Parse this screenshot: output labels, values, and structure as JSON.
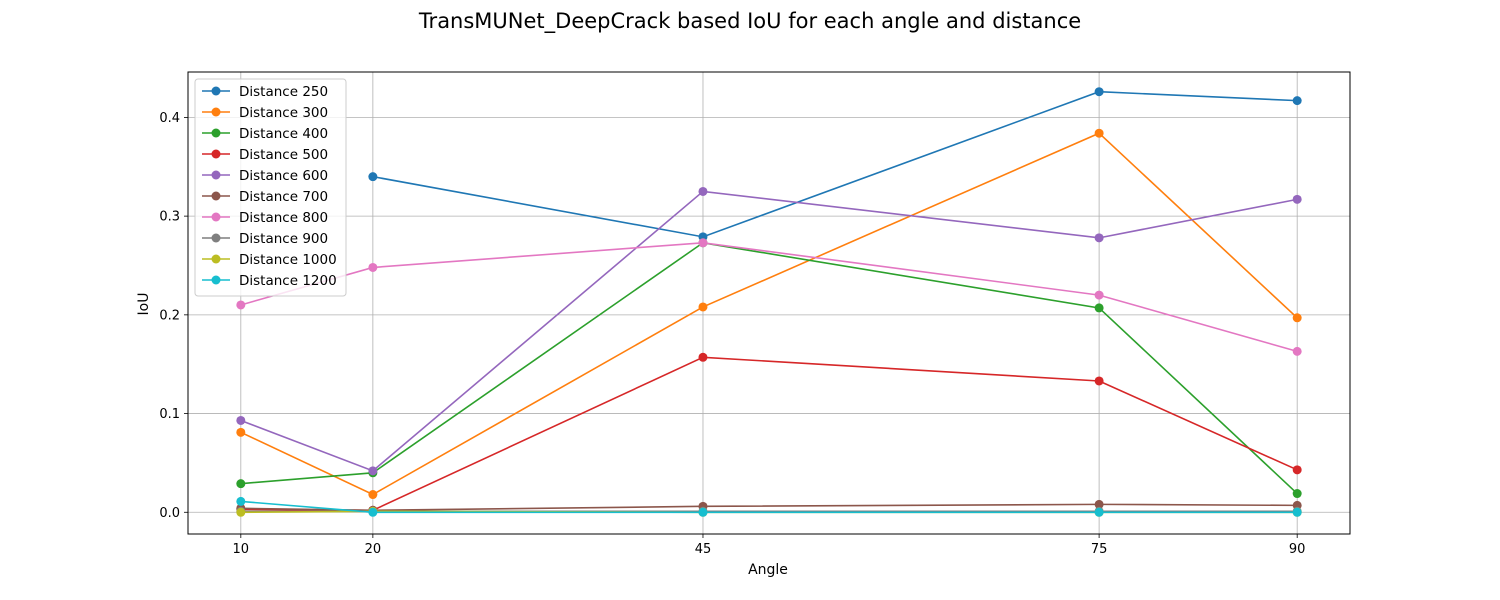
{
  "chart_data": {
    "type": "line",
    "title": "TransMUNet_DeepCrack based IoU for each angle and distance",
    "xlabel": "Angle",
    "ylabel": "IoU",
    "xlim": [
      6,
      94
    ],
    "ylim": [
      -0.022,
      0.446
    ],
    "xticks": [
      10,
      20,
      45,
      75,
      90
    ],
    "yticks": [
      0.0,
      0.1,
      0.2,
      0.3,
      0.4
    ],
    "ytick_labels": [
      "0.0",
      "0.1",
      "0.2",
      "0.3",
      "0.4"
    ],
    "grid": true,
    "legend_position": "upper-left",
    "x": [
      10,
      20,
      45,
      75,
      90
    ],
    "series": [
      {
        "name": "Distance 250",
        "color": "#1f77b4",
        "values": [
          null,
          0.34,
          0.279,
          0.426,
          0.417
        ]
      },
      {
        "name": "Distance 300",
        "color": "#ff7f0e",
        "values": [
          0.081,
          0.018,
          0.208,
          0.384,
          0.197
        ]
      },
      {
        "name": "Distance 400",
        "color": "#2ca02c",
        "values": [
          0.029,
          0.04,
          0.273,
          0.207,
          0.019
        ]
      },
      {
        "name": "Distance 500",
        "color": "#d62728",
        "values": [
          0.003,
          0.002,
          0.157,
          0.133,
          0.043
        ]
      },
      {
        "name": "Distance 600",
        "color": "#9467bd",
        "values": [
          0.093,
          0.042,
          0.325,
          0.278,
          0.317
        ]
      },
      {
        "name": "Distance 700",
        "color": "#8c564b",
        "values": [
          0.004,
          0.002,
          0.006,
          0.008,
          0.007
        ]
      },
      {
        "name": "Distance 800",
        "color": "#e377c2",
        "values": [
          0.21,
          0.248,
          0.273,
          0.22,
          0.163
        ]
      },
      {
        "name": "Distance 900",
        "color": "#7f7f7f",
        "values": [
          0.001,
          0.001,
          0.001,
          0.001,
          0.001
        ]
      },
      {
        "name": "Distance 1000",
        "color": "#bcbd22",
        "values": [
          0.0,
          0.001,
          0.0,
          0.0,
          0.0
        ]
      },
      {
        "name": "Distance 1200",
        "color": "#17becf",
        "values": [
          0.011,
          0.0,
          0.0,
          0.0,
          0.0
        ]
      }
    ]
  }
}
